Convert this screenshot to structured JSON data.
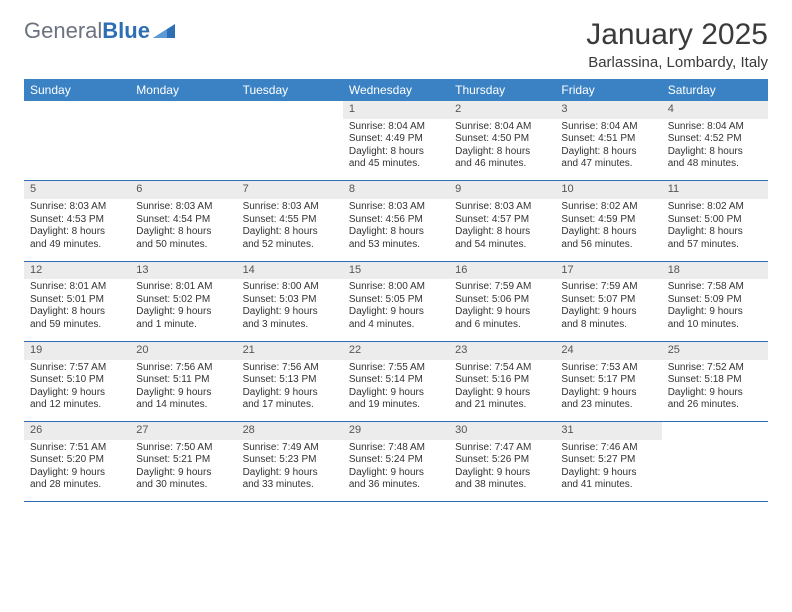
{
  "logo": {
    "word1": "General",
    "word2": "Blue"
  },
  "title": "January 2025",
  "location": "Barlassina, Lombardy, Italy",
  "colors": {
    "header_bg": "#3b82c4",
    "header_text": "#ffffff",
    "daynum_bg": "#ececec",
    "rule": "#2d6fb5",
    "logo_gray": "#6b7280",
    "logo_blue": "#2d6fb5"
  },
  "day_headers": [
    "Sunday",
    "Monday",
    "Tuesday",
    "Wednesday",
    "Thursday",
    "Friday",
    "Saturday"
  ],
  "weeks": [
    [
      null,
      null,
      null,
      {
        "n": "1",
        "sr": "Sunrise: 8:04 AM",
        "ss": "Sunset: 4:49 PM",
        "d1": "Daylight: 8 hours",
        "d2": "and 45 minutes."
      },
      {
        "n": "2",
        "sr": "Sunrise: 8:04 AM",
        "ss": "Sunset: 4:50 PM",
        "d1": "Daylight: 8 hours",
        "d2": "and 46 minutes."
      },
      {
        "n": "3",
        "sr": "Sunrise: 8:04 AM",
        "ss": "Sunset: 4:51 PM",
        "d1": "Daylight: 8 hours",
        "d2": "and 47 minutes."
      },
      {
        "n": "4",
        "sr": "Sunrise: 8:04 AM",
        "ss": "Sunset: 4:52 PM",
        "d1": "Daylight: 8 hours",
        "d2": "and 48 minutes."
      }
    ],
    [
      {
        "n": "5",
        "sr": "Sunrise: 8:03 AM",
        "ss": "Sunset: 4:53 PM",
        "d1": "Daylight: 8 hours",
        "d2": "and 49 minutes."
      },
      {
        "n": "6",
        "sr": "Sunrise: 8:03 AM",
        "ss": "Sunset: 4:54 PM",
        "d1": "Daylight: 8 hours",
        "d2": "and 50 minutes."
      },
      {
        "n": "7",
        "sr": "Sunrise: 8:03 AM",
        "ss": "Sunset: 4:55 PM",
        "d1": "Daylight: 8 hours",
        "d2": "and 52 minutes."
      },
      {
        "n": "8",
        "sr": "Sunrise: 8:03 AM",
        "ss": "Sunset: 4:56 PM",
        "d1": "Daylight: 8 hours",
        "d2": "and 53 minutes."
      },
      {
        "n": "9",
        "sr": "Sunrise: 8:03 AM",
        "ss": "Sunset: 4:57 PM",
        "d1": "Daylight: 8 hours",
        "d2": "and 54 minutes."
      },
      {
        "n": "10",
        "sr": "Sunrise: 8:02 AM",
        "ss": "Sunset: 4:59 PM",
        "d1": "Daylight: 8 hours",
        "d2": "and 56 minutes."
      },
      {
        "n": "11",
        "sr": "Sunrise: 8:02 AM",
        "ss": "Sunset: 5:00 PM",
        "d1": "Daylight: 8 hours",
        "d2": "and 57 minutes."
      }
    ],
    [
      {
        "n": "12",
        "sr": "Sunrise: 8:01 AM",
        "ss": "Sunset: 5:01 PM",
        "d1": "Daylight: 8 hours",
        "d2": "and 59 minutes."
      },
      {
        "n": "13",
        "sr": "Sunrise: 8:01 AM",
        "ss": "Sunset: 5:02 PM",
        "d1": "Daylight: 9 hours",
        "d2": "and 1 minute."
      },
      {
        "n": "14",
        "sr": "Sunrise: 8:00 AM",
        "ss": "Sunset: 5:03 PM",
        "d1": "Daylight: 9 hours",
        "d2": "and 3 minutes."
      },
      {
        "n": "15",
        "sr": "Sunrise: 8:00 AM",
        "ss": "Sunset: 5:05 PM",
        "d1": "Daylight: 9 hours",
        "d2": "and 4 minutes."
      },
      {
        "n": "16",
        "sr": "Sunrise: 7:59 AM",
        "ss": "Sunset: 5:06 PM",
        "d1": "Daylight: 9 hours",
        "d2": "and 6 minutes."
      },
      {
        "n": "17",
        "sr": "Sunrise: 7:59 AM",
        "ss": "Sunset: 5:07 PM",
        "d1": "Daylight: 9 hours",
        "d2": "and 8 minutes."
      },
      {
        "n": "18",
        "sr": "Sunrise: 7:58 AM",
        "ss": "Sunset: 5:09 PM",
        "d1": "Daylight: 9 hours",
        "d2": "and 10 minutes."
      }
    ],
    [
      {
        "n": "19",
        "sr": "Sunrise: 7:57 AM",
        "ss": "Sunset: 5:10 PM",
        "d1": "Daylight: 9 hours",
        "d2": "and 12 minutes."
      },
      {
        "n": "20",
        "sr": "Sunrise: 7:56 AM",
        "ss": "Sunset: 5:11 PM",
        "d1": "Daylight: 9 hours",
        "d2": "and 14 minutes."
      },
      {
        "n": "21",
        "sr": "Sunrise: 7:56 AM",
        "ss": "Sunset: 5:13 PM",
        "d1": "Daylight: 9 hours",
        "d2": "and 17 minutes."
      },
      {
        "n": "22",
        "sr": "Sunrise: 7:55 AM",
        "ss": "Sunset: 5:14 PM",
        "d1": "Daylight: 9 hours",
        "d2": "and 19 minutes."
      },
      {
        "n": "23",
        "sr": "Sunrise: 7:54 AM",
        "ss": "Sunset: 5:16 PM",
        "d1": "Daylight: 9 hours",
        "d2": "and 21 minutes."
      },
      {
        "n": "24",
        "sr": "Sunrise: 7:53 AM",
        "ss": "Sunset: 5:17 PM",
        "d1": "Daylight: 9 hours",
        "d2": "and 23 minutes."
      },
      {
        "n": "25",
        "sr": "Sunrise: 7:52 AM",
        "ss": "Sunset: 5:18 PM",
        "d1": "Daylight: 9 hours",
        "d2": "and 26 minutes."
      }
    ],
    [
      {
        "n": "26",
        "sr": "Sunrise: 7:51 AM",
        "ss": "Sunset: 5:20 PM",
        "d1": "Daylight: 9 hours",
        "d2": "and 28 minutes."
      },
      {
        "n": "27",
        "sr": "Sunrise: 7:50 AM",
        "ss": "Sunset: 5:21 PM",
        "d1": "Daylight: 9 hours",
        "d2": "and 30 minutes."
      },
      {
        "n": "28",
        "sr": "Sunrise: 7:49 AM",
        "ss": "Sunset: 5:23 PM",
        "d1": "Daylight: 9 hours",
        "d2": "and 33 minutes."
      },
      {
        "n": "29",
        "sr": "Sunrise: 7:48 AM",
        "ss": "Sunset: 5:24 PM",
        "d1": "Daylight: 9 hours",
        "d2": "and 36 minutes."
      },
      {
        "n": "30",
        "sr": "Sunrise: 7:47 AM",
        "ss": "Sunset: 5:26 PM",
        "d1": "Daylight: 9 hours",
        "d2": "and 38 minutes."
      },
      {
        "n": "31",
        "sr": "Sunrise: 7:46 AM",
        "ss": "Sunset: 5:27 PM",
        "d1": "Daylight: 9 hours",
        "d2": "and 41 minutes."
      },
      null
    ]
  ]
}
